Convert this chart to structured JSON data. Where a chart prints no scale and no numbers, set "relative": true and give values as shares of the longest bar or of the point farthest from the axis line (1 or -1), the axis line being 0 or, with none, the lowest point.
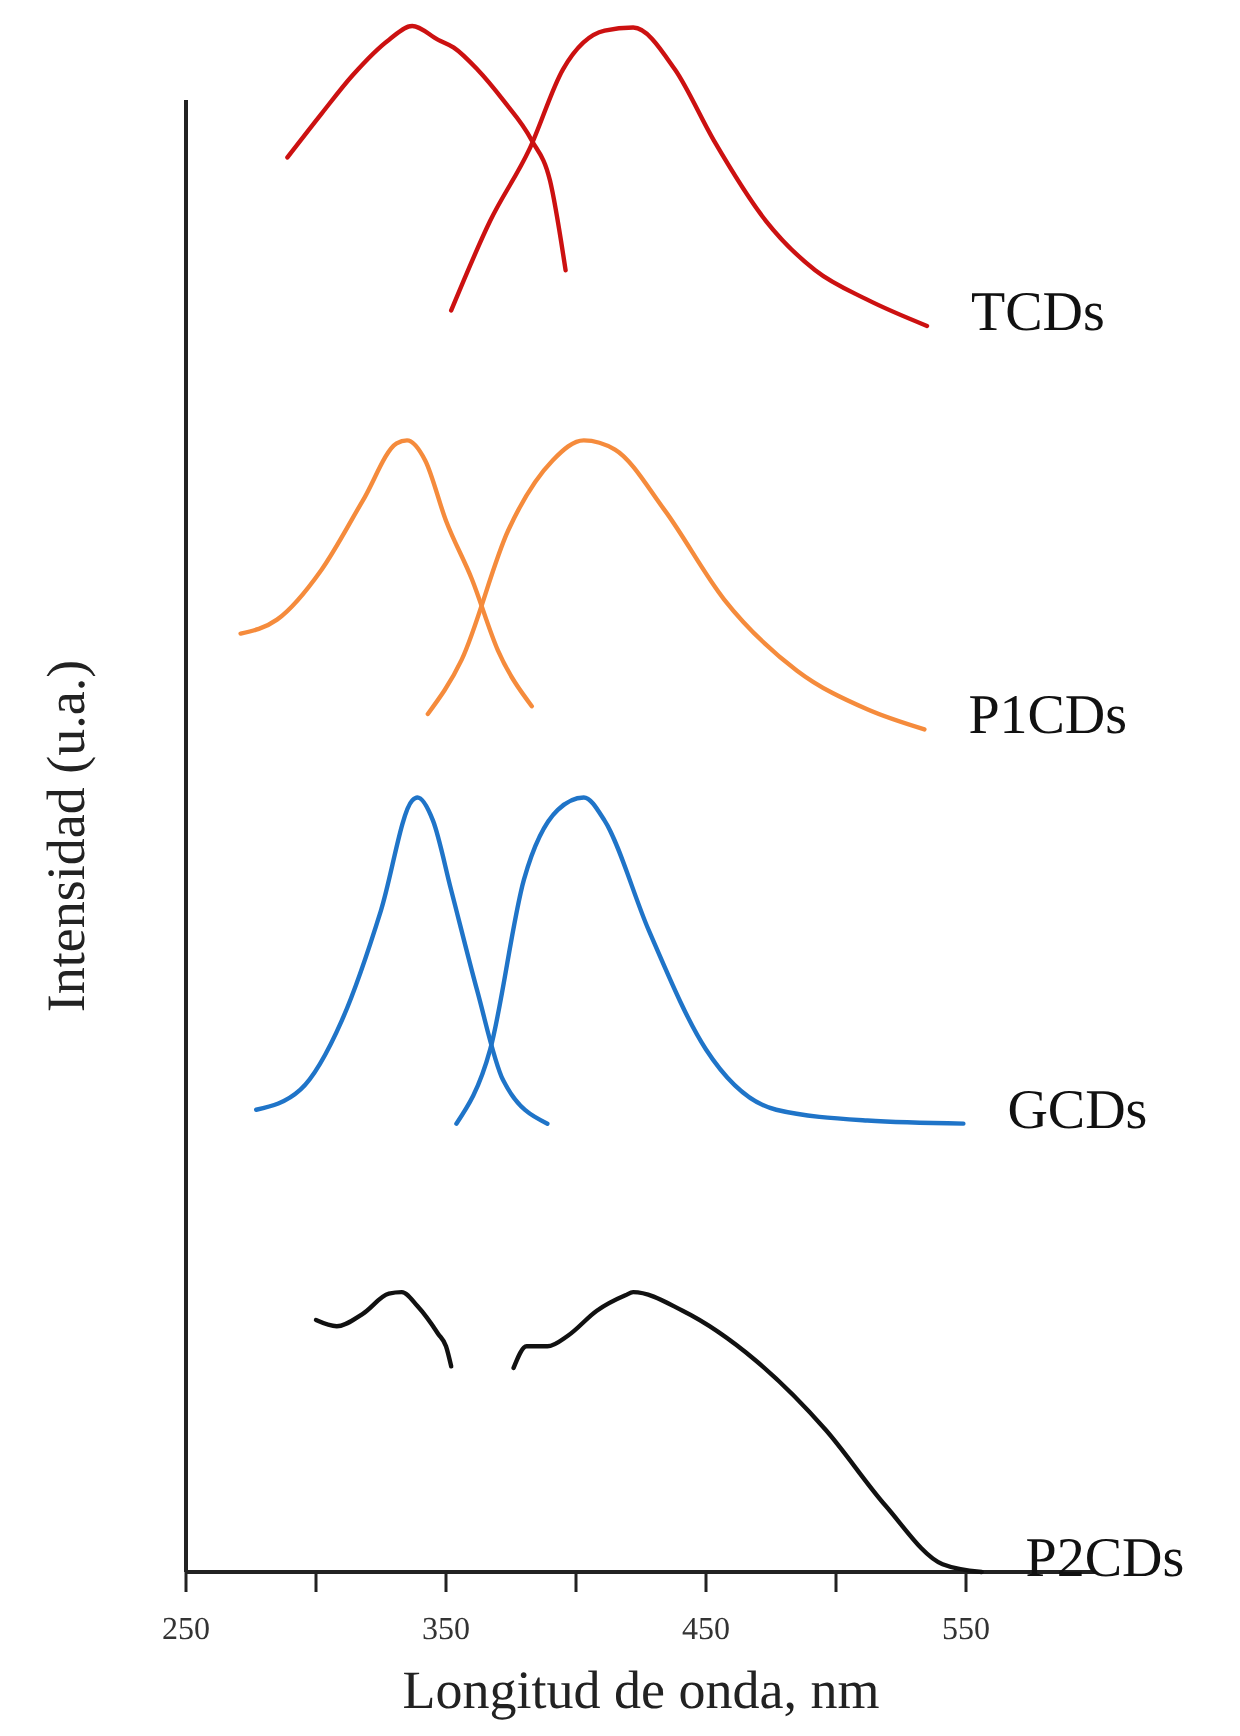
{
  "chart_data": {
    "type": "line",
    "relative": true,
    "xlabel": "Longitud de onda, nm",
    "ylabel": "Intensidad (u.a.)",
    "xlim": [
      250,
      600
    ],
    "xticks": [
      250,
      {
        "value": 300,
        "label": null
      },
      350,
      {
        "value": 400,
        "label": null
      },
      450,
      {
        "value": 500,
        "label": null
      },
      550
    ],
    "grid": false,
    "legend": false,
    "marker": "none",
    "line_style": "solid",
    "series": [
      {
        "color": "#cc1111",
        "x": [
          289,
          302,
          314,
          328,
          337,
          347,
          353,
          362,
          372,
          383,
          390,
          396
        ],
        "values": [
          0.915,
          0.943,
          0.968,
          0.991,
          1.0,
          0.991,
          0.986,
          0.972,
          0.952,
          0.926,
          0.9,
          0.842
        ]
      },
      {
        "name": "TCDs",
        "color": "#cc1111",
        "x": [
          352,
          367,
          382,
          395,
          411,
          422,
          438,
          453,
          473,
          492,
          512,
          535
        ],
        "values": [
          0.816,
          0.874,
          0.92,
          0.972,
          0.997,
          0.999,
          0.972,
          0.926,
          0.874,
          0.842,
          0.823,
          0.806
        ]
      },
      {
        "color": "#f58b3c",
        "x": [
          271,
          285,
          302,
          318,
          331,
          335,
          342,
          350,
          360,
          370,
          383
        ],
        "values": [
          0.607,
          0.616,
          0.648,
          0.693,
          0.73,
          0.732,
          0.719,
          0.68,
          0.642,
          0.596,
          0.56
        ]
      },
      {
        "name": "P1CDs",
        "color": "#f58b3c",
        "x": [
          343,
          356,
          374,
          391,
          403,
          415,
          434,
          457,
          485,
          512,
          534
        ],
        "values": [
          0.555,
          0.59,
          0.674,
          0.719,
          0.732,
          0.726,
          0.687,
          0.629,
          0.583,
          0.558,
          0.545
        ]
      },
      {
        "color": "#1f74c8",
        "x": [
          277,
          294,
          310,
          325,
          337,
          339,
          345,
          352,
          362,
          372,
          389
        ],
        "values": [
          0.299,
          0.312,
          0.357,
          0.428,
          0.499,
          0.501,
          0.486,
          0.441,
          0.376,
          0.318,
          0.29
        ]
      },
      {
        "name": "GCDs",
        "color": "#1f74c8",
        "x": [
          354,
          367,
          380,
          393,
          403,
          411,
          428,
          450,
          477,
          512,
          549
        ],
        "values": [
          0.29,
          0.338,
          0.448,
          0.493,
          0.501,
          0.486,
          0.415,
          0.338,
          0.299,
          0.292,
          0.29
        ]
      },
      {
        "color": "#111111",
        "x": [
          300,
          308,
          318,
          328,
          333,
          339,
          347,
          350,
          352
        ],
        "values": [
          0.163,
          0.159,
          0.167,
          0.18,
          0.181,
          0.172,
          0.154,
          0.146,
          0.133
        ]
      },
      {
        "name": "P2CDs",
        "color": "#111111",
        "x": [
          376,
          381,
          389,
          397,
          408,
          419,
          422,
          441,
          469,
          496,
          519,
          541,
          556
        ],
        "values": [
          0.132,
          0.146,
          0.146,
          0.153,
          0.169,
          0.179,
          0.181,
          0.169,
          0.137,
          0.092,
          0.043,
          0.005,
          0
        ]
      }
    ]
  }
}
